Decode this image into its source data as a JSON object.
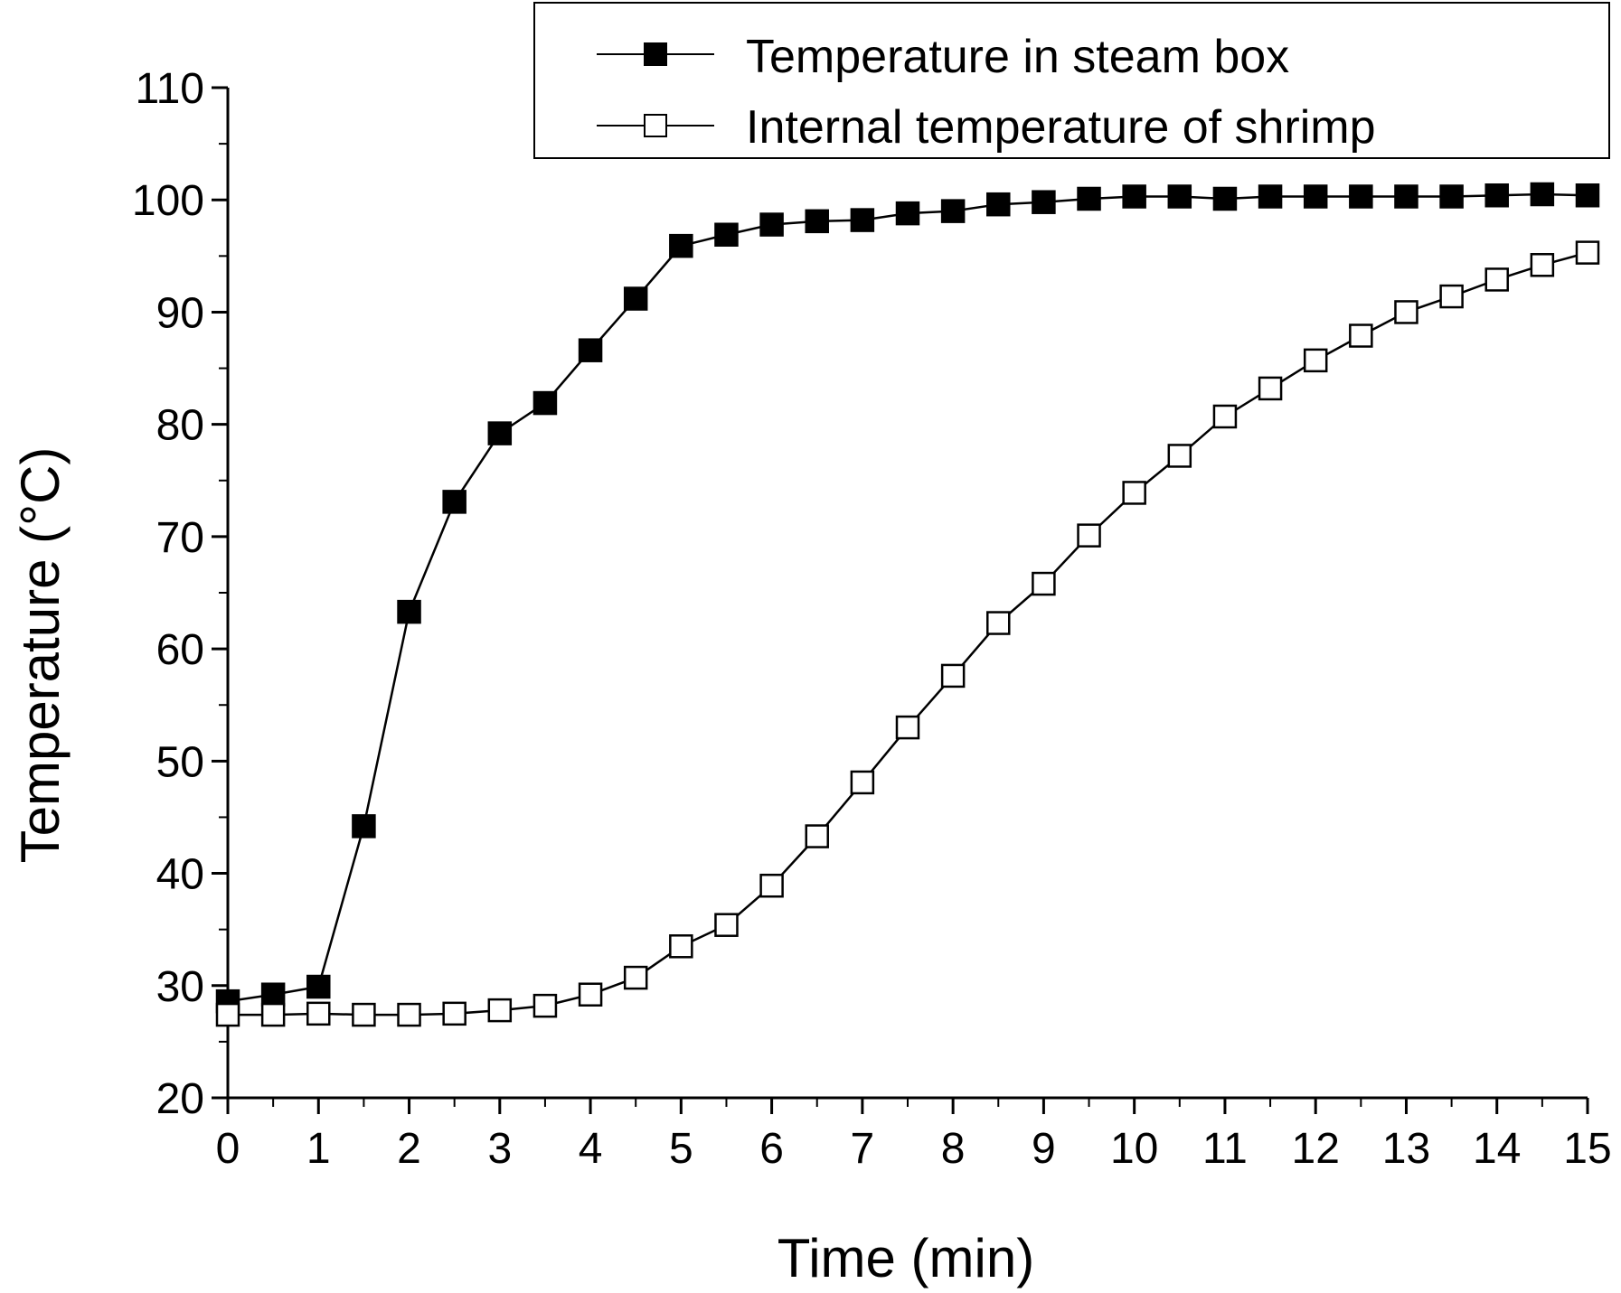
{
  "chart_data": {
    "type": "line",
    "xlabel": "Time (min)",
    "ylabel": "Temperature (°C)",
    "xlim": [
      0,
      15
    ],
    "ylim": [
      20,
      110
    ],
    "x_ticks": [
      "0",
      "1",
      "2",
      "3",
      "4",
      "5",
      "6",
      "7",
      "8",
      "9",
      "10",
      "11",
      "12",
      "13",
      "14",
      "15"
    ],
    "y_ticks": [
      "20",
      "30",
      "40",
      "50",
      "60",
      "70",
      "80",
      "90",
      "100",
      "110"
    ],
    "grid": false,
    "legend_position": "top-right",
    "x": [
      0,
      0.5,
      1,
      1.5,
      2,
      2.5,
      3,
      3.5,
      4,
      4.5,
      5,
      5.5,
      6,
      6.5,
      7,
      7.5,
      8,
      8.5,
      9,
      9.5,
      10,
      10.5,
      11,
      11.5,
      12,
      12.5,
      13,
      13.5,
      14,
      14.5,
      15
    ],
    "series": [
      {
        "name": "Temperature in steam box",
        "marker": "filled-square",
        "color": "#000000",
        "values": [
          28.6,
          29.2,
          29.9,
          44.2,
          63.3,
          73.1,
          79.2,
          81.9,
          86.6,
          91.2,
          95.9,
          96.9,
          97.8,
          98.1,
          98.2,
          98.8,
          99.0,
          99.6,
          99.8,
          100.1,
          100.3,
          100.3,
          100.1,
          100.3,
          100.3,
          100.3,
          100.3,
          100.3,
          100.4,
          100.5,
          100.4
        ]
      },
      {
        "name": "Internal temperature of shrimp",
        "marker": "open-square",
        "color": "#000000",
        "values": [
          27.4,
          27.4,
          27.5,
          27.4,
          27.4,
          27.5,
          27.8,
          28.2,
          29.2,
          30.7,
          33.5,
          35.4,
          38.9,
          43.3,
          48.1,
          53.0,
          57.6,
          62.3,
          65.8,
          70.1,
          73.9,
          77.2,
          80.7,
          83.2,
          85.7,
          87.9,
          90.0,
          91.4,
          92.9,
          94.2,
          95.3
        ]
      }
    ]
  }
}
